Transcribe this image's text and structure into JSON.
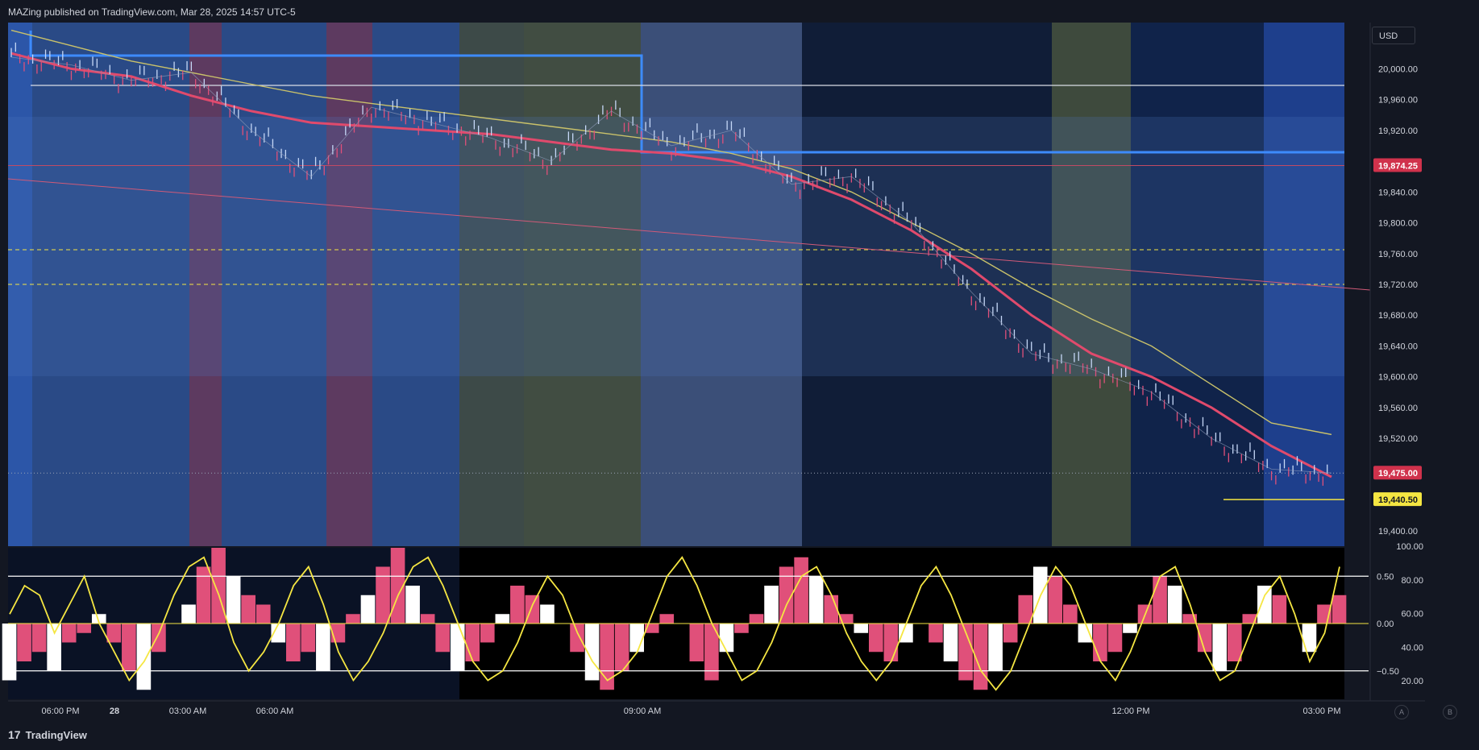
{
  "header": {
    "published": "MAZing published on TradingView.com, Mar 28, 2025 14:57 UTC-5"
  },
  "footer": {
    "brand": "TradingView",
    "mark": "17"
  },
  "price_axis": {
    "currency": "USD"
  },
  "buttons": {
    "a": "A",
    "b": "B"
  },
  "colors": {
    "background": "#131722",
    "bull": "#c6d8f7",
    "bear": "#e0507a",
    "ema_fast": "#e04a6c",
    "ema_slow": "#c9c16a",
    "vwap": "#8e9bb8",
    "zone_blue": "#3d8bfd",
    "last_price": "#d0324c",
    "alert_price": "#f5e642",
    "osc_line": "#f5e642"
  },
  "chart_data": [
    {
      "type": "line",
      "name": "price",
      "ylim": [
        19380,
        20060
      ],
      "yticks": [
        20000,
        19960,
        19920,
        19880,
        19840,
        19800,
        19760,
        19720,
        19680,
        19640,
        19600,
        19560,
        19520,
        19480,
        19440,
        19400
      ],
      "ytick_labels": [
        "20,000.00",
        "19,960.00",
        "19,920.00",
        "19,880.00",
        "19,840.00",
        "19,800.00",
        "19,760.00",
        "19,720.00",
        "19,680.00",
        "19,640.00",
        "19,600.00",
        "19,560.00",
        "19,520.00",
        "19,480.00",
        "19,440.00",
        "19,400.00"
      ],
      "xtick_labels": [
        "06:00 PM",
        "28",
        "03:00 AM",
        "06:00 AM",
        "09:00 AM",
        "12:00 PM",
        "03:00 PM"
      ],
      "x": [
        "17:00",
        "18:00",
        "19:00",
        "20:00",
        "21:00",
        "22:00",
        "23:00",
        "00:00",
        "01:00",
        "02:00",
        "03:00",
        "04:00",
        "05:00",
        "06:00",
        "07:00",
        "08:00",
        "09:00",
        "10:00",
        "11:00",
        "12:00",
        "13:00",
        "14:00",
        "14:57"
      ],
      "price": [
        20015,
        20005,
        19985,
        19995,
        19920,
        19860,
        19950,
        19930,
        19910,
        19880,
        19945,
        19900,
        19920,
        19850,
        19860,
        19800,
        19710,
        19630,
        19610,
        19580,
        19520,
        19480,
        19475
      ],
      "ema_fast": [
        20020,
        20000,
        19990,
        19965,
        19945,
        19930,
        19925,
        19920,
        19915,
        19905,
        19895,
        19890,
        19880,
        19860,
        19830,
        19790,
        19740,
        19680,
        19630,
        19600,
        19560,
        19510,
        19470
      ],
      "ema_slow": [
        20050,
        20030,
        20010,
        19995,
        19980,
        19965,
        19955,
        19945,
        19935,
        19925,
        19915,
        19905,
        19890,
        19870,
        19840,
        19800,
        19760,
        19715,
        19675,
        19640,
        19590,
        19540,
        19525
      ],
      "last_price": {
        "value": 19475.0,
        "label": "19,475.00"
      },
      "line_price": {
        "value": 19874.25,
        "label": "19,874.25"
      },
      "alert_price": {
        "value": 19440.5,
        "label": "19,440.50"
      },
      "levels": [
        19975,
        19890,
        19765,
        19720
      ]
    },
    {
      "type": "bar",
      "name": "oscillator",
      "left_ticks": [
        0.5,
        0.0,
        -0.5
      ],
      "left_tick_labels": [
        "0.50",
        "0.00",
        "−0.50"
      ],
      "right_ticks": [
        100,
        80,
        60,
        40,
        20
      ],
      "right_tick_labels": [
        "100.00",
        "80.00",
        "60.00",
        "40.00",
        "20.00"
      ],
      "ylim": [
        -0.8,
        0.8
      ],
      "values": [
        -0.6,
        -0.4,
        -0.3,
        -0.5,
        -0.2,
        -0.1,
        0.1,
        -0.2,
        -0.5,
        -0.7,
        -0.3,
        0.0,
        0.2,
        0.6,
        0.8,
        0.5,
        0.3,
        0.2,
        -0.2,
        -0.4,
        -0.3,
        -0.5,
        -0.2,
        0.1,
        0.3,
        0.6,
        0.8,
        0.4,
        0.1,
        -0.3,
        -0.5,
        -0.4,
        -0.2,
        0.1,
        0.4,
        0.3,
        0.2,
        0.0,
        -0.3,
        -0.6,
        -0.7,
        -0.5,
        -0.3,
        -0.1,
        0.1,
        0.0,
        -0.4,
        -0.6,
        -0.3,
        -0.1,
        0.1,
        0.4,
        0.6,
        0.7,
        0.5,
        0.3,
        0.1,
        -0.1,
        -0.3,
        -0.4,
        -0.2,
        0.0,
        -0.2,
        -0.4,
        -0.6,
        -0.7,
        -0.5,
        -0.2,
        0.3,
        0.6,
        0.5,
        0.2,
        -0.2,
        -0.4,
        -0.3,
        -0.1,
        0.2,
        0.5,
        0.4,
        0.1,
        -0.3,
        -0.5,
        -0.4,
        0.1,
        0.4,
        0.3,
        0.0,
        -0.3,
        0.2,
        0.3
      ],
      "line": [
        0.1,
        0.4,
        0.3,
        -0.1,
        0.2,
        0.5,
        0.0,
        -0.3,
        -0.6,
        -0.4,
        -0.1,
        0.3,
        0.6,
        0.7,
        0.3,
        -0.2,
        -0.5,
        -0.3,
        0.0,
        0.4,
        0.6,
        0.2,
        -0.3,
        -0.6,
        -0.4,
        -0.1,
        0.3,
        0.6,
        0.7,
        0.4,
        0.0,
        -0.4,
        -0.6,
        -0.5,
        -0.2,
        0.2,
        0.5,
        0.3,
        -0.1,
        -0.4,
        -0.6,
        -0.5,
        -0.3,
        0.1,
        0.5,
        0.7,
        0.4,
        0.0,
        -0.3,
        -0.6,
        -0.5,
        -0.2,
        0.2,
        0.5,
        0.6,
        0.3,
        -0.1,
        -0.4,
        -0.6,
        -0.4,
        0.0,
        0.4,
        0.6,
        0.3,
        -0.1,
        -0.5,
        -0.7,
        -0.5,
        -0.1,
        0.3,
        0.6,
        0.4,
        0.0,
        -0.4,
        -0.6,
        -0.3,
        0.1,
        0.5,
        0.6,
        0.2,
        -0.3,
        -0.6,
        -0.5,
        -0.1,
        0.3,
        0.5,
        0.1,
        -0.4,
        -0.1,
        0.6
      ]
    }
  ]
}
